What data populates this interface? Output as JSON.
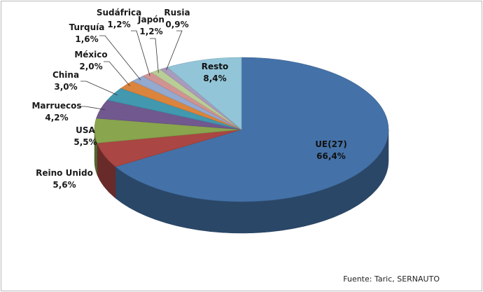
{
  "chart_data": {
    "type": "pie",
    "title": "",
    "slices": [
      {
        "label": "UE(27)",
        "value_label": "66,4%",
        "value": 66.4,
        "color": "#4472a8"
      },
      {
        "label": "Reino Unido",
        "value_label": "5,6%",
        "value": 5.6,
        "color": "#aa4643"
      },
      {
        "label": "USA",
        "value_label": "5,5%",
        "value": 5.5,
        "color": "#89a54e"
      },
      {
        "label": "Marruecos",
        "value_label": "4,2%",
        "value": 4.2,
        "color": "#71588f"
      },
      {
        "label": "China",
        "value_label": "3,0%",
        "value": 3.0,
        "color": "#4198af"
      },
      {
        "label": "México",
        "value_label": "2,0%",
        "value": 2.0,
        "color": "#db843d"
      },
      {
        "label": "Turquía",
        "value_label": "1,6%",
        "value": 1.6,
        "color": "#93a9cf"
      },
      {
        "label": "Sudáfrica",
        "value_label": "1,2%",
        "value": 1.2,
        "color": "#d19392"
      },
      {
        "label": "Japón",
        "value_label": "1,2%",
        "value": 1.2,
        "color": "#b9cd96"
      },
      {
        "label": "Rusia",
        "value_label": "0,9%",
        "value": 0.9,
        "color": "#a99bbd"
      },
      {
        "label": "Resto",
        "value_label": "8,4%",
        "value": 8.4,
        "color": "#92c5d8"
      }
    ],
    "source": "Fuente: Taric, SERNAUTO"
  }
}
